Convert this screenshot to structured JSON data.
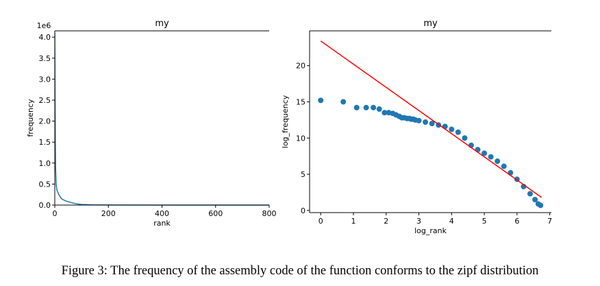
{
  "chart_data": [
    {
      "type": "line",
      "title": "my",
      "xlabel": "rank",
      "ylabel": "frequency",
      "offset_label": "1e6",
      "x": [
        0,
        1,
        2,
        3,
        5,
        8,
        15,
        25,
        40,
        60,
        80,
        100,
        150,
        200,
        400,
        800
      ],
      "values": [
        4.1,
        2.7,
        1.6,
        0.9,
        0.5,
        0.35,
        0.25,
        0.15,
        0.1,
        0.06,
        0.03,
        0.015,
        0.005,
        0.002,
        0.0005,
        0.0001
      ],
      "color": "#1f77b4",
      "xlim": [
        0,
        800
      ],
      "xticks": [
        0,
        200,
        400,
        600,
        800
      ],
      "ylim": [
        0,
        4.15
      ],
      "yticks": [
        {
          "value": 0,
          "label": "0.0"
        },
        0.5,
        {
          "value": 1,
          "label": "1.0"
        },
        1.5,
        {
          "value": 2,
          "label": "2.0"
        },
        2.5,
        {
          "value": 3,
          "label": "3.0"
        },
        3.5,
        {
          "value": 4,
          "label": "4.0"
        }
      ]
    },
    {
      "type": "scatter",
      "title": "my",
      "xlabel": "log_rank",
      "ylabel": "log_frequency",
      "series": [
        {
          "type": "scatter",
          "color": "#1f77b4",
          "x": [
            0,
            0.69,
            1.1,
            1.39,
            1.61,
            1.79,
            1.95,
            2.08,
            2.2,
            2.3,
            2.4,
            2.48,
            2.56,
            2.64,
            2.71,
            2.77,
            2.83,
            2.89,
            3.0,
            3.2,
            3.4,
            3.6,
            3.8,
            4.0,
            4.2,
            4.4,
            4.6,
            4.8,
            5.0,
            5.2,
            5.4,
            5.6,
            5.8,
            6.0,
            6.2,
            6.4,
            6.55,
            6.65,
            6.72
          ],
          "values": [
            15.2,
            15.0,
            14.2,
            14.2,
            14.2,
            14.0,
            13.5,
            13.5,
            13.4,
            13.2,
            13.0,
            12.8,
            12.8,
            12.7,
            12.7,
            12.6,
            12.6,
            12.5,
            12.4,
            12.2,
            12.0,
            11.8,
            11.6,
            11.2,
            10.8,
            10.0,
            9.0,
            8.4,
            7.9,
            7.4,
            6.8,
            6.1,
            5.2,
            4.3,
            3.3,
            2.3,
            1.5,
            0.9,
            0.7
          ]
        },
        {
          "type": "line",
          "color": "#ff0000",
          "x": [
            0,
            6.75
          ],
          "values": [
            23.4,
            1.8
          ]
        }
      ],
      "xlim": [
        -0.34,
        7.05
      ],
      "xticks": [
        0,
        1,
        2,
        3,
        4,
        5,
        6,
        7
      ],
      "ylim": [
        -0.3,
        24.8
      ],
      "yticks": [
        0,
        5,
        10,
        15,
        20
      ]
    }
  ],
  "caption": "Figure 3: The frequency of the assembly code of the function conforms to the zipf distribution"
}
